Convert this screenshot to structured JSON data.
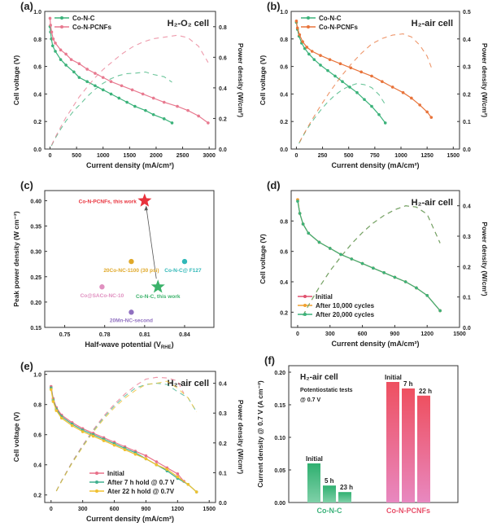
{
  "chart_data": [
    {
      "id": "a",
      "type": "line",
      "panel_label": "(a)",
      "title": "H₂-O₂ cell",
      "xlabel": "Current density (mA/cm²)",
      "ylabel": "Cell voltage (V)",
      "y2label": "Power density (W/cm²)",
      "xlim": [
        -100,
        3120
      ],
      "ylim": [
        0,
        1.0
      ],
      "y2lim": [
        0,
        0.9
      ],
      "xticks": [
        "0",
        "500",
        "1000",
        "1500",
        "2000",
        "2500",
        "3000"
      ],
      "yticks": [
        "0.0",
        "0.2",
        "0.4",
        "0.6",
        "0.8",
        "1.0"
      ],
      "y2ticks": [
        "0.0",
        "0.2",
        "0.4",
        "0.6",
        "0.8"
      ],
      "legend_position": "top-left",
      "series": [
        {
          "name": "Co-N-C",
          "color": "#3bb27a",
          "points": [
            [
              0,
              0.89
            ],
            [
              10,
              0.85
            ],
            [
              25,
              0.8
            ],
            [
              50,
              0.75
            ],
            [
              100,
              0.71
            ],
            [
              200,
              0.65
            ],
            [
              300,
              0.61
            ],
            [
              450,
              0.56
            ],
            [
              550,
              0.52
            ],
            [
              700,
              0.49
            ],
            [
              850,
              0.46
            ],
            [
              1000,
              0.43
            ],
            [
              1150,
              0.4
            ],
            [
              1300,
              0.37
            ],
            [
              1450,
              0.34
            ],
            [
              1600,
              0.31
            ],
            [
              1800,
              0.28
            ],
            [
              1950,
              0.25
            ],
            [
              2150,
              0.22
            ],
            [
              2300,
              0.19
            ]
          ]
        },
        {
          "name": "Co-N-PCNFs",
          "color": "#e87a90",
          "points": [
            [
              0,
              0.95
            ],
            [
              10,
              0.9
            ],
            [
              30,
              0.85
            ],
            [
              60,
              0.8
            ],
            [
              100,
              0.77
            ],
            [
              200,
              0.72
            ],
            [
              300,
              0.69
            ],
            [
              400,
              0.65
            ],
            [
              550,
              0.62
            ],
            [
              700,
              0.58
            ],
            [
              850,
              0.55
            ],
            [
              1000,
              0.52
            ],
            [
              1150,
              0.49
            ],
            [
              1350,
              0.46
            ],
            [
              1550,
              0.43
            ],
            [
              1750,
              0.4
            ],
            [
              1950,
              0.37
            ],
            [
              2150,
              0.34
            ],
            [
              2400,
              0.31
            ],
            [
              2600,
              0.28
            ],
            [
              2800,
              0.24
            ],
            [
              2980,
              0.19
            ]
          ]
        }
      ]
    },
    {
      "id": "b",
      "type": "line",
      "panel_label": "(b)",
      "title": "H₂-air cell",
      "xlabel": "Current density (mA/cm²)",
      "ylabel": "Cell voltage (V)",
      "y2label": "Power density (W/cm²)",
      "xlim": [
        -50,
        1560
      ],
      "ylim": [
        0,
        1.0
      ],
      "y2lim": [
        0,
        0.5
      ],
      "xticks": [
        "0",
        "250",
        "500",
        "750",
        "1000",
        "1250",
        "1500"
      ],
      "yticks": [
        "0.0",
        "0.2",
        "0.4",
        "0.6",
        "0.8",
        "1.0"
      ],
      "y2ticks": [
        "0.0",
        "0.1",
        "0.2",
        "0.3",
        "0.4",
        "0.5"
      ],
      "legend_position": "top-left",
      "series": [
        {
          "name": "Co-N-C",
          "color": "#3bb27a",
          "points": [
            [
              0,
              0.92
            ],
            [
              10,
              0.87
            ],
            [
              25,
              0.82
            ],
            [
              50,
              0.77
            ],
            [
              80,
              0.73
            ],
            [
              120,
              0.69
            ],
            [
              170,
              0.65
            ],
            [
              230,
              0.61
            ],
            [
              300,
              0.57
            ],
            [
              370,
              0.53
            ],
            [
              440,
              0.49
            ],
            [
              510,
              0.45
            ],
            [
              580,
              0.41
            ],
            [
              650,
              0.36
            ],
            [
              720,
              0.31
            ],
            [
              790,
              0.25
            ],
            [
              850,
              0.19
            ]
          ]
        },
        {
          "name": "Co-N-PCNFs",
          "color": "#e8743b",
          "points": [
            [
              0,
              0.93
            ],
            [
              10,
              0.88
            ],
            [
              30,
              0.83
            ],
            [
              60,
              0.78
            ],
            [
              100,
              0.74
            ],
            [
              150,
              0.71
            ],
            [
              230,
              0.68
            ],
            [
              320,
              0.65
            ],
            [
              420,
              0.62
            ],
            [
              520,
              0.59
            ],
            [
              620,
              0.56
            ],
            [
              720,
              0.53
            ],
            [
              820,
              0.49
            ],
            [
              920,
              0.45
            ],
            [
              1020,
              0.41
            ],
            [
              1100,
              0.37
            ],
            [
              1180,
              0.32
            ],
            [
              1250,
              0.27
            ],
            [
              1290,
              0.23
            ]
          ]
        }
      ]
    },
    {
      "id": "c",
      "type": "scatter",
      "panel_label": "(c)",
      "xlabel_parts": [
        "Half-wave potential (V",
        "RHE",
        ")"
      ],
      "ylabel": "Peak power density (W cm⁻²)",
      "xlim": [
        0.735,
        0.862
      ],
      "ylim": [
        0.15,
        0.42
      ],
      "xticks": [
        "0.75",
        "0.78",
        "0.81",
        "0.84"
      ],
      "yticks": [
        "0.15",
        "0.20",
        "0.25",
        "0.30",
        "0.35",
        "0.40"
      ],
      "points": [
        {
          "label": "Co-N-PCNFs, this work",
          "x": 0.81,
          "y": 0.4,
          "color": "#e8323c",
          "marker": "star"
        },
        {
          "label": "Co-N-C, this work",
          "x": 0.82,
          "y": 0.23,
          "color": "#3bb26a",
          "marker": "star"
        },
        {
          "label": "20Co-NC-1100 (30 psi)",
          "x": 0.8,
          "y": 0.28,
          "color": "#e0a828",
          "marker": "circle"
        },
        {
          "label": "Co-N-C@ F127",
          "x": 0.84,
          "y": 0.28,
          "color": "#30b8b8",
          "marker": "circle"
        },
        {
          "label": "Co@SACo-NC-10",
          "x": 0.778,
          "y": 0.23,
          "color": "#e090c0",
          "marker": "circle"
        },
        {
          "label": "20Mn-NC-second",
          "x": 0.8,
          "y": 0.18,
          "color": "#9070c0",
          "marker": "circle"
        }
      ]
    },
    {
      "id": "d",
      "type": "line",
      "panel_label": "(d)",
      "title": "H₂-air cell",
      "xlabel": "Current density (mA/cm²)",
      "ylabel": "Cell voltage (V)",
      "y2label": "Power density (W/cm²)",
      "xlim": [
        -60,
        1500
      ],
      "ylim": [
        0.1,
        1.0
      ],
      "y2lim": [
        0,
        0.45
      ],
      "xticks": [
        "0",
        "300",
        "600",
        "900",
        "1200",
        "1500"
      ],
      "yticks": [
        "0.2",
        "0.4",
        "0.6",
        "0.8"
      ],
      "y2ticks": [
        "0.0",
        "0.1",
        "0.2",
        "0.3",
        "0.4"
      ],
      "legend_position": "bottom-left",
      "series": [
        {
          "name": "Initial",
          "color": "#e0506e",
          "points": [
            [
              0,
              0.94
            ],
            [
              20,
              0.85
            ],
            [
              50,
              0.78
            ],
            [
              100,
              0.72
            ],
            [
              200,
              0.66
            ],
            [
              300,
              0.62
            ],
            [
              400,
              0.58
            ],
            [
              500,
              0.55
            ],
            [
              600,
              0.52
            ],
            [
              700,
              0.49
            ],
            [
              800,
              0.46
            ],
            [
              900,
              0.43
            ],
            [
              1000,
              0.4
            ],
            [
              1100,
              0.36
            ],
            [
              1200,
              0.31
            ],
            [
              1320,
              0.21
            ]
          ]
        },
        {
          "name": "After 10,000 cycles",
          "color": "#f0a030",
          "points": [
            [
              0,
              0.94
            ],
            [
              20,
              0.85
            ],
            [
              50,
              0.78
            ],
            [
              100,
              0.72
            ],
            [
              200,
              0.66
            ],
            [
              300,
              0.62
            ],
            [
              400,
              0.58
            ],
            [
              500,
              0.55
            ],
            [
              600,
              0.52
            ],
            [
              700,
              0.49
            ],
            [
              800,
              0.46
            ],
            [
              900,
              0.43
            ],
            [
              1000,
              0.4
            ],
            [
              1100,
              0.36
            ],
            [
              1200,
              0.31
            ],
            [
              1320,
              0.21
            ]
          ]
        },
        {
          "name": "After 20,000 cycles",
          "color": "#3bb27a",
          "points": [
            [
              0,
              0.93
            ],
            [
              20,
              0.85
            ],
            [
              50,
              0.78
            ],
            [
              100,
              0.72
            ],
            [
              200,
              0.66
            ],
            [
              300,
              0.62
            ],
            [
              400,
              0.58
            ],
            [
              500,
              0.55
            ],
            [
              600,
              0.52
            ],
            [
              700,
              0.49
            ],
            [
              800,
              0.46
            ],
            [
              900,
              0.43
            ],
            [
              1000,
              0.4
            ],
            [
              1100,
              0.36
            ],
            [
              1200,
              0.31
            ],
            [
              1320,
              0.21
            ]
          ]
        }
      ]
    },
    {
      "id": "e",
      "type": "line",
      "panel_label": "(e)",
      "title": "H₂-air cell",
      "xlabel": "Current density (mA/cm²)",
      "ylabel": "Cell voltage (V)",
      "y2label": "Power density (W/cm²)",
      "xlim": [
        -60,
        1560
      ],
      "ylim": [
        0.15,
        1.02
      ],
      "y2lim": [
        0,
        0.44
      ],
      "xticks": [
        "0",
        "300",
        "600",
        "900",
        "1200",
        "1500"
      ],
      "yticks": [
        "0.2",
        "0.4",
        "0.6",
        "0.8",
        "1.0"
      ],
      "y2ticks": [
        "0.0",
        "0.1",
        "0.2",
        "0.3",
        "0.4"
      ],
      "legend_position": "bottom-center",
      "series": [
        {
          "name": "Initial",
          "color": "#e8708a",
          "points": [
            [
              0,
              0.92
            ],
            [
              20,
              0.84
            ],
            [
              50,
              0.78
            ],
            [
              100,
              0.73
            ],
            [
              200,
              0.68
            ],
            [
              300,
              0.64
            ],
            [
              400,
              0.61
            ],
            [
              500,
              0.58
            ],
            [
              600,
              0.55
            ],
            [
              700,
              0.52
            ],
            [
              800,
              0.49
            ],
            [
              900,
              0.46
            ],
            [
              1000,
              0.42
            ],
            [
              1100,
              0.38
            ],
            [
              1200,
              0.34
            ],
            [
              1260,
              0.29
            ]
          ]
        },
        {
          "name": "After 7 h hold @ 0.7 V",
          "color": "#40b090",
          "points": [
            [
              0,
              0.91
            ],
            [
              20,
              0.83
            ],
            [
              50,
              0.77
            ],
            [
              100,
              0.72
            ],
            [
              200,
              0.67
            ],
            [
              300,
              0.63
            ],
            [
              400,
              0.6
            ],
            [
              500,
              0.57
            ],
            [
              600,
              0.54
            ],
            [
              700,
              0.51
            ],
            [
              800,
              0.48
            ],
            [
              900,
              0.44
            ],
            [
              1000,
              0.4
            ],
            [
              1100,
              0.36
            ],
            [
              1200,
              0.31
            ],
            [
              1300,
              0.27
            ],
            [
              1380,
              0.22
            ]
          ]
        },
        {
          "name": "Ater 22 h hold @ 0.7V",
          "color": "#f0c030",
          "points": [
            [
              0,
              0.9
            ],
            [
              20,
              0.82
            ],
            [
              50,
              0.76
            ],
            [
              100,
              0.71
            ],
            [
              200,
              0.66
            ],
            [
              300,
              0.62
            ],
            [
              400,
              0.59
            ],
            [
              500,
              0.56
            ],
            [
              600,
              0.53
            ],
            [
              700,
              0.5
            ],
            [
              800,
              0.47
            ],
            [
              900,
              0.44
            ],
            [
              1000,
              0.4
            ],
            [
              1100,
              0.37
            ],
            [
              1200,
              0.32
            ],
            [
              1300,
              0.27
            ],
            [
              1380,
              0.22
            ]
          ]
        }
      ]
    },
    {
      "id": "f",
      "type": "bar",
      "panel_label": "(f)",
      "title": "H₂-air cell",
      "note_lines": [
        "Potentiostatic tests",
        "@ 0.7 V"
      ],
      "ylabel": "Current density @ 0.7 V (A cm⁻²)",
      "ylim": [
        0,
        0.21
      ],
      "yticks": [
        "0.00",
        "0.05",
        "0.10",
        "0.15",
        "0.20"
      ],
      "groups": [
        {
          "name": "Co-N-C",
          "color": "#3bb27a",
          "bars": [
            {
              "label": "Initial",
              "value": 0.06
            },
            {
              "label": "5 h",
              "value": 0.026
            },
            {
              "label": "23 h",
              "value": 0.016
            }
          ]
        },
        {
          "name": "Co-N-PCNFs",
          "color": "#e8506a",
          "bars": [
            {
              "label": "Initial",
              "value": 0.185
            },
            {
              "label": "7 h",
              "value": 0.175
            },
            {
              "label": "22 h",
              "value": 0.164
            }
          ]
        }
      ]
    }
  ]
}
